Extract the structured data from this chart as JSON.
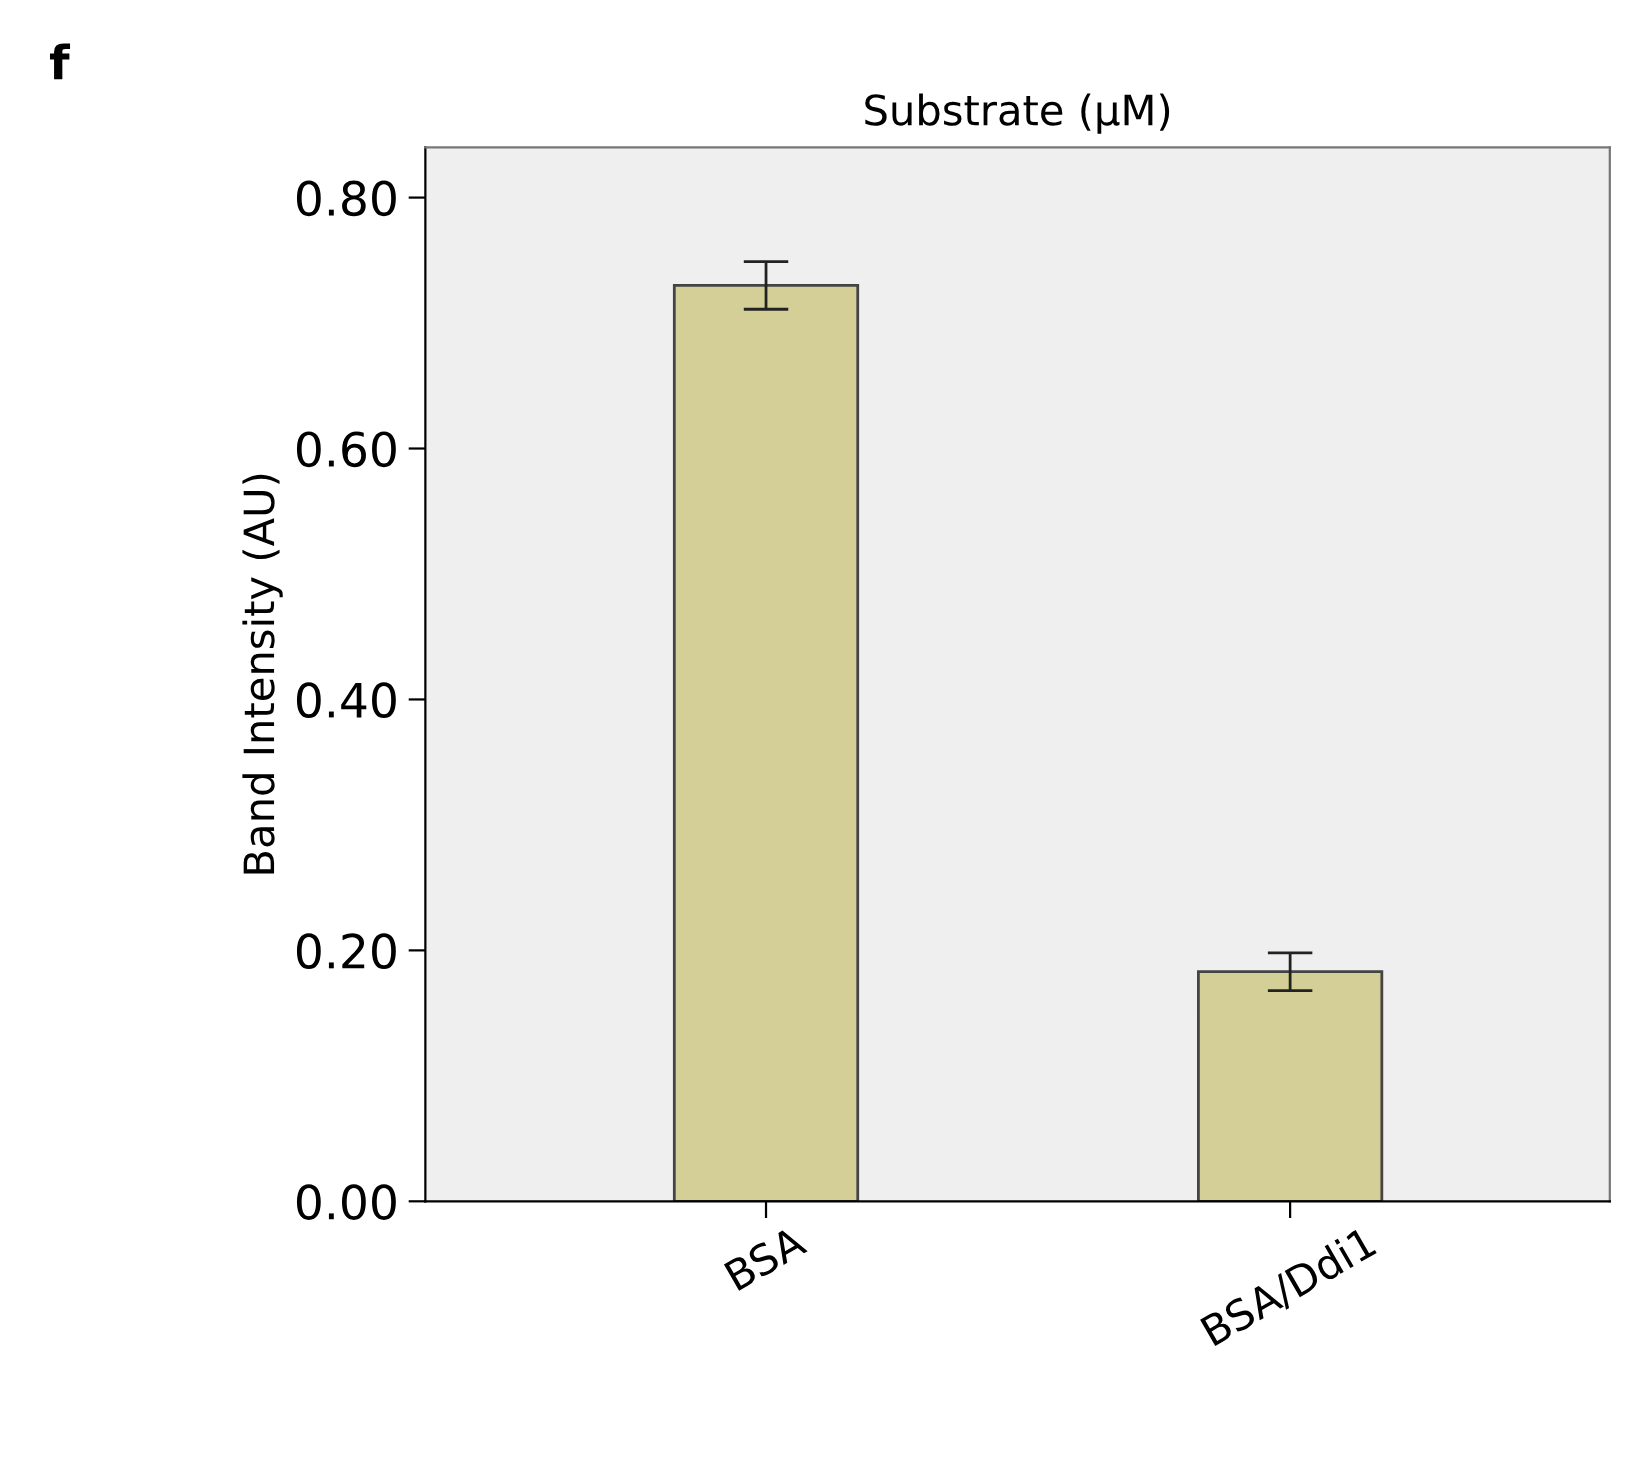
{
  "chart_data": {
    "type": "bar",
    "title": "Substrate (µM)",
    "ylabel": "Band Intensity (AU)",
    "annotations": [
      "f"
    ],
    "categories": [
      "BSA",
      "BSA/Ddi1"
    ],
    "values": [
      0.73,
      0.183
    ],
    "errors": [
      0.019,
      0.015
    ],
    "color": "#d3cf96",
    "ylim": [
      0,
      0.84
    ],
    "yticks": [
      {
        "value": 0,
        "label": "0.00"
      },
      {
        "value": 0.2,
        "label": "0.20"
      },
      {
        "value": 0.4,
        "label": "0.40"
      },
      {
        "value": 0.6,
        "label": "0.60"
      },
      {
        "value": 0.8,
        "label": "0.80"
      }
    ],
    "grid": false
  }
}
